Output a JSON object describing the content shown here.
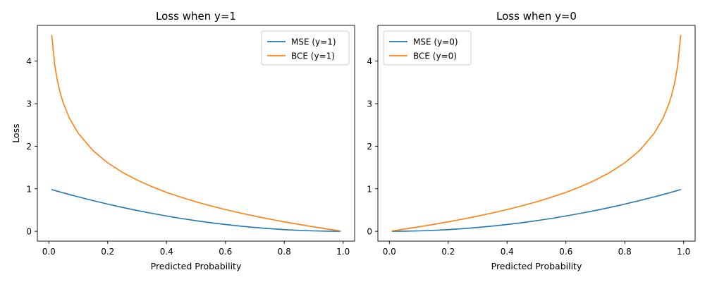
{
  "figure": {
    "background": "#ffffff"
  },
  "colors": {
    "mse": "#1f77b4",
    "bce": "#ff7f0e",
    "axes": "#000000",
    "legend_border": "#cccccc"
  },
  "chart_data": [
    {
      "type": "line",
      "title": "Loss when y=1",
      "xlabel": "Predicted Probability",
      "ylabel": "Loss",
      "xlim": [
        -0.039,
        1.039
      ],
      "ylim": [
        -0.23,
        4.84
      ],
      "xticks": [
        0.0,
        0.2,
        0.4,
        0.6,
        0.8,
        1.0
      ],
      "xtick_labels": [
        "0.0",
        "0.2",
        "0.4",
        "0.6",
        "0.8",
        "1.0"
      ],
      "yticks": [
        0,
        1,
        2,
        3,
        4
      ],
      "ytick_labels": [
        "0",
        "1",
        "2",
        "3",
        "4"
      ],
      "grid": false,
      "legend_position": "upper right",
      "x": [
        0.01,
        0.02,
        0.03,
        0.04,
        0.05,
        0.07,
        0.1,
        0.15,
        0.2,
        0.25,
        0.3,
        0.35,
        0.4,
        0.45,
        0.5,
        0.55,
        0.6,
        0.65,
        0.7,
        0.75,
        0.8,
        0.85,
        0.9,
        0.95,
        0.99
      ],
      "series": [
        {
          "name": "MSE (y=1)",
          "color": "#1f77b4",
          "values": [
            0.9801,
            0.9604,
            0.9409,
            0.9216,
            0.9025,
            0.8649,
            0.81,
            0.7225,
            0.64,
            0.5625,
            0.49,
            0.4225,
            0.36,
            0.3025,
            0.25,
            0.2025,
            0.16,
            0.1225,
            0.09,
            0.0625,
            0.04,
            0.0225,
            0.01,
            0.0025,
            0.0001
          ]
        },
        {
          "name": "BCE (y=1)",
          "color": "#ff7f0e",
          "values": [
            4.605,
            3.912,
            3.507,
            3.219,
            2.996,
            2.659,
            2.303,
            1.897,
            1.609,
            1.386,
            1.204,
            1.05,
            0.916,
            0.799,
            0.693,
            0.598,
            0.511,
            0.431,
            0.357,
            0.288,
            0.223,
            0.163,
            0.105,
            0.051,
            0.01
          ]
        }
      ]
    },
    {
      "type": "line",
      "title": "Loss when y=0",
      "xlabel": "Predicted Probability",
      "ylabel": "",
      "xlim": [
        -0.039,
        1.039
      ],
      "ylim": [
        -0.23,
        4.84
      ],
      "xticks": [
        0.0,
        0.2,
        0.4,
        0.6,
        0.8,
        1.0
      ],
      "xtick_labels": [
        "0.0",
        "0.2",
        "0.4",
        "0.6",
        "0.8",
        "1.0"
      ],
      "yticks": [
        0,
        1,
        2,
        3,
        4
      ],
      "ytick_labels": [
        "0",
        "1",
        "2",
        "3",
        "4"
      ],
      "grid": false,
      "legend_position": "upper left",
      "x": [
        0.01,
        0.05,
        0.1,
        0.15,
        0.2,
        0.25,
        0.3,
        0.35,
        0.4,
        0.45,
        0.5,
        0.55,
        0.6,
        0.65,
        0.7,
        0.75,
        0.8,
        0.85,
        0.9,
        0.93,
        0.95,
        0.96,
        0.97,
        0.98,
        0.99
      ],
      "series": [
        {
          "name": "MSE (y=0)",
          "color": "#1f77b4",
          "values": [
            0.0001,
            0.0025,
            0.01,
            0.0225,
            0.04,
            0.0625,
            0.09,
            0.1225,
            0.16,
            0.2025,
            0.25,
            0.3025,
            0.36,
            0.4225,
            0.49,
            0.5625,
            0.64,
            0.7225,
            0.81,
            0.8649,
            0.9025,
            0.9216,
            0.9409,
            0.9604,
            0.9801
          ]
        },
        {
          "name": "BCE (y=0)",
          "color": "#ff7f0e",
          "values": [
            0.01,
            0.051,
            0.105,
            0.163,
            0.223,
            0.288,
            0.357,
            0.431,
            0.511,
            0.598,
            0.693,
            0.799,
            0.916,
            1.05,
            1.204,
            1.386,
            1.609,
            1.897,
            2.303,
            2.659,
            2.996,
            3.219,
            3.507,
            3.912,
            4.605
          ]
        }
      ]
    }
  ]
}
